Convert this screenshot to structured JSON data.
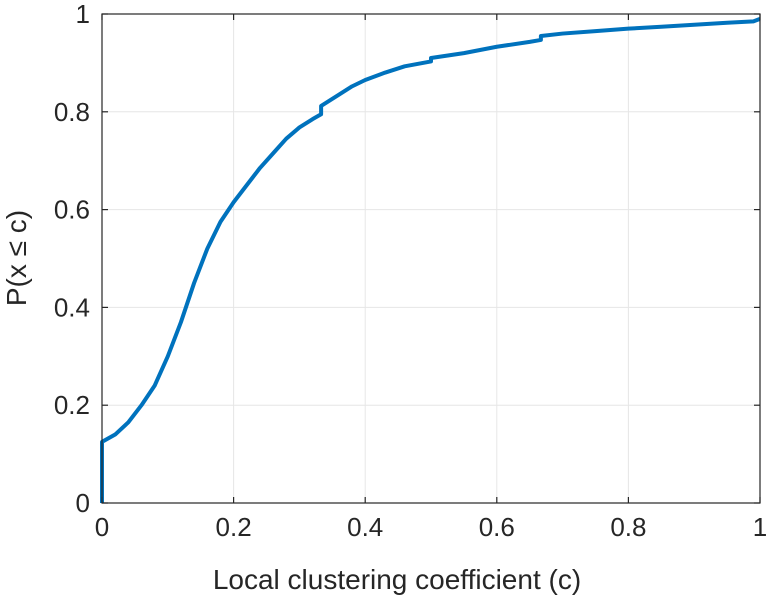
{
  "chart_data": {
    "type": "line",
    "title": "",
    "xlabel": "Local clustering coefficient (c)",
    "ylabel": "P(x ≤ c)",
    "xlim": [
      0,
      1
    ],
    "ylim": [
      0,
      1
    ],
    "xticks": [
      0,
      0.2,
      0.4,
      0.6,
      0.8,
      1
    ],
    "yticks": [
      0,
      0.2,
      0.4,
      0.6,
      0.8,
      1
    ],
    "xtick_labels": [
      "0",
      "0.2",
      "0.4",
      "0.6",
      "0.8",
      "1"
    ],
    "ytick_labels": [
      "0",
      "0.2",
      "0.4",
      "0.6",
      "0.8",
      "1"
    ],
    "grid": true,
    "line_color": "#0072BD",
    "series": [
      {
        "step": true,
        "x": [
          0,
          0,
          0.02,
          0.04,
          0.06,
          0.08,
          0.1,
          0.12,
          0.14,
          0.16,
          0.18,
          0.2,
          0.22,
          0.24,
          0.26,
          0.28,
          0.3,
          0.32,
          0.333,
          0.333,
          0.36,
          0.38,
          0.4,
          0.43,
          0.46,
          0.5,
          0.5,
          0.55,
          0.6,
          0.65,
          0.667,
          0.667,
          0.7,
          0.75,
          0.8,
          0.85,
          0.9,
          0.95,
          0.99,
          1.0
        ],
        "y": [
          0,
          0.125,
          0.14,
          0.165,
          0.2,
          0.24,
          0.3,
          0.37,
          0.45,
          0.52,
          0.575,
          0.615,
          0.65,
          0.685,
          0.715,
          0.745,
          0.768,
          0.785,
          0.795,
          0.812,
          0.835,
          0.852,
          0.865,
          0.88,
          0.893,
          0.903,
          0.91,
          0.92,
          0.933,
          0.943,
          0.947,
          0.955,
          0.96,
          0.965,
          0.97,
          0.974,
          0.978,
          0.982,
          0.985,
          0.99
        ]
      }
    ]
  }
}
